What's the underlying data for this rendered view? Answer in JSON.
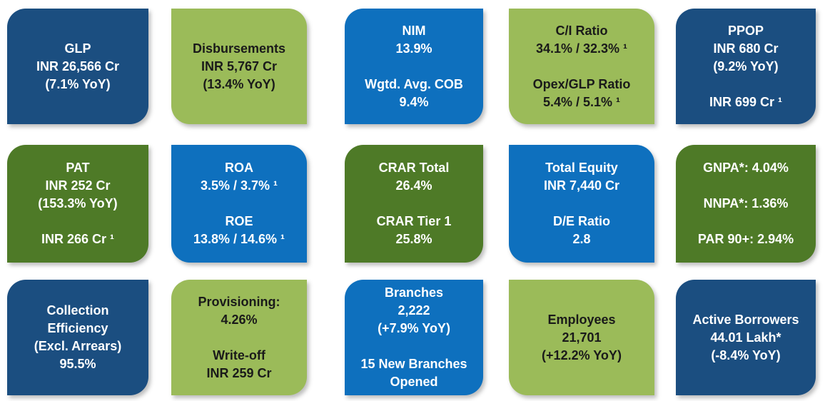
{
  "page": {
    "background": "#FFFFFF"
  },
  "palette": {
    "navy": "#1B4E80",
    "blue": "#0E70BE",
    "green": "#9BBB59",
    "olive": "#4E7A27",
    "text_on_dark": "#FFFFFF",
    "text_on_green": "#1A1A1A"
  },
  "cards": [
    {
      "name": "glp",
      "color": "navy",
      "shape": "tl-br",
      "lines": [
        "GLP",
        "INR 26,566 Cr",
        "(7.1% YoY)"
      ]
    },
    {
      "name": "disbursements",
      "color": "green",
      "shape": "tr-bl",
      "lines": [
        "Disbursements",
        "INR 5,767 Cr",
        "(13.4% YoY)"
      ]
    },
    {
      "name": "nim-cob",
      "color": "blue",
      "shape": "tl-br",
      "lines": [
        "NIM",
        "13.9%",
        "",
        "Wgtd. Avg. COB",
        "9.4%"
      ]
    },
    {
      "name": "ci-ratio-opex",
      "color": "green",
      "shape": "tr-bl",
      "lines": [
        "C/I Ratio",
        "34.1% / 32.3% ¹",
        "",
        "Opex/GLP Ratio",
        "5.4% / 5.1% ¹"
      ]
    },
    {
      "name": "ppop",
      "color": "navy",
      "shape": "tl-br",
      "lines": [
        "PPOP",
        "INR 680 Cr",
        "(9.2% YoY)",
        "",
        "INR 699 Cr ¹"
      ]
    },
    {
      "name": "pat",
      "color": "olive",
      "shape": "tl-br",
      "lines": [
        "PAT",
        "INR 252 Cr",
        "(153.3% YoY)",
        "",
        "INR 266 Cr ¹"
      ]
    },
    {
      "name": "roa-roe",
      "color": "blue",
      "shape": "tr-bl",
      "lines": [
        "ROA",
        "3.5% / 3.7% ¹",
        "",
        "ROE",
        "13.8% / 14.6% ¹"
      ]
    },
    {
      "name": "crar",
      "color": "olive",
      "shape": "tl-br",
      "lines": [
        "CRAR Total",
        "26.4%",
        "",
        "CRAR Tier 1",
        "25.8%"
      ]
    },
    {
      "name": "total-equity-de",
      "color": "blue",
      "shape": "tr-bl",
      "lines": [
        "Total Equity",
        "INR 7,440 Cr",
        "",
        "D/E Ratio",
        "2.8"
      ]
    },
    {
      "name": "asset-quality",
      "color": "olive",
      "shape": "tl-br",
      "lines": [
        "GNPA*: 4.04%",
        "",
        "NNPA*: 1.36%",
        "",
        "PAR 90+: 2.94%"
      ]
    },
    {
      "name": "collection-efficiency",
      "color": "navy",
      "shape": "tl-br",
      "lines": [
        "Collection",
        "Efficiency",
        "(Excl. Arrears)",
        "95.5%"
      ]
    },
    {
      "name": "provisioning-writeoff",
      "color": "green",
      "shape": "tl-br",
      "lines": [
        "Provisioning:",
        "4.26%",
        "",
        "Write-off",
        "INR 259 Cr"
      ]
    },
    {
      "name": "branches",
      "color": "blue",
      "shape": "tl-br",
      "lines": [
        "Branches",
        "2,222",
        "(+7.9% YoY)",
        "",
        "15 New Branches",
        "Opened"
      ]
    },
    {
      "name": "employees",
      "color": "green",
      "shape": "tr-bl",
      "lines": [
        "Employees",
        "21,701",
        "(+12.2% YoY)"
      ]
    },
    {
      "name": "active-borrowers",
      "color": "navy",
      "shape": "tl-br",
      "lines": [
        "Active Borrowers",
        "44.01 Lakh*",
        "(-8.4% YoY)"
      ]
    }
  ]
}
